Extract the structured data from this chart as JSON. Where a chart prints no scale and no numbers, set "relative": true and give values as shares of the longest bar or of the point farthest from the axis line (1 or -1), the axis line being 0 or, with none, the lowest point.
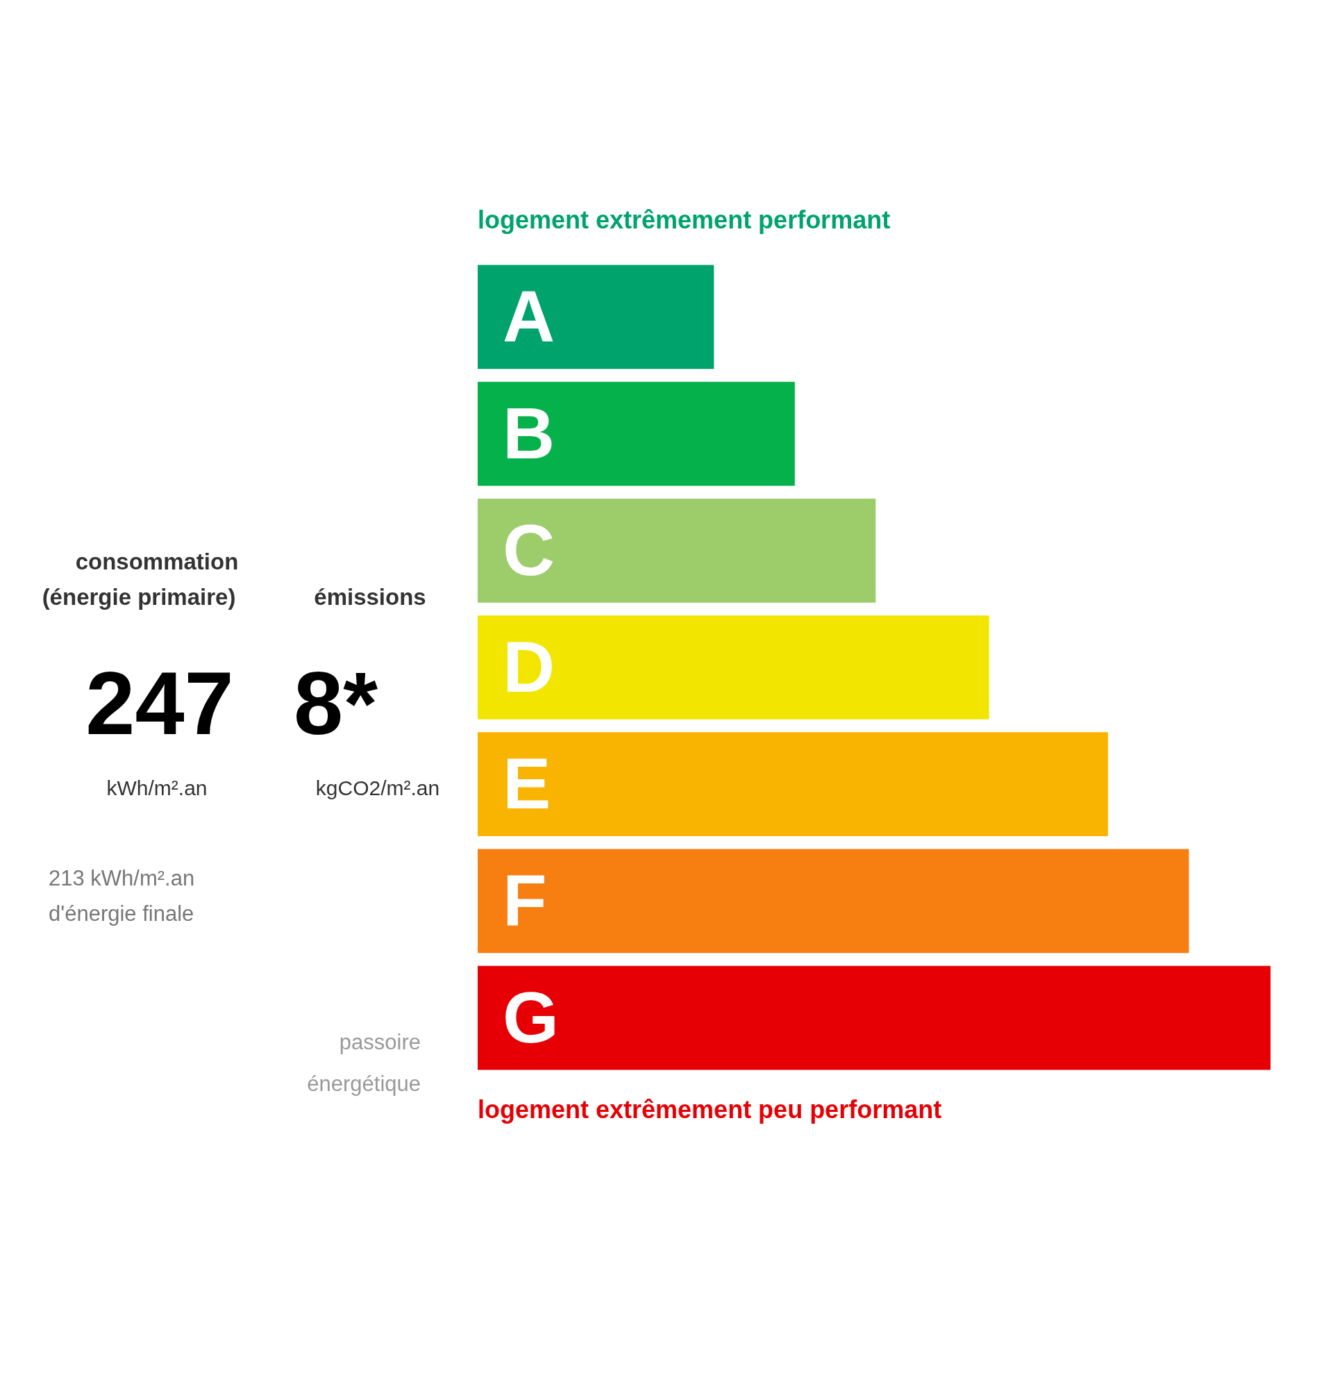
{
  "chart_data": {
    "type": "bar",
    "orientation": "horizontal",
    "relative": true,
    "title": "logement extrêmement performant",
    "categories": [
      "A",
      "B",
      "C",
      "D",
      "E",
      "F",
      "G"
    ],
    "values": [
      0.298,
      0.4,
      0.502,
      0.645,
      0.795,
      0.897,
      1
    ],
    "colors": [
      "#00a36c",
      "#05b14a",
      "#9dcc6b",
      "#f2e600",
      "#f8b400",
      "#f77f12",
      "#e60005"
    ],
    "annotations": [
      "consommation",
      "(énergie primaire)",
      "émissions",
      "247",
      "kWh/m².an",
      "8*",
      "kgCO2/m².an",
      "213 kWh/m².an",
      "d'énergie finale",
      "passoire",
      "énergétique",
      "logement extrêmement peu performant"
    ]
  }
}
